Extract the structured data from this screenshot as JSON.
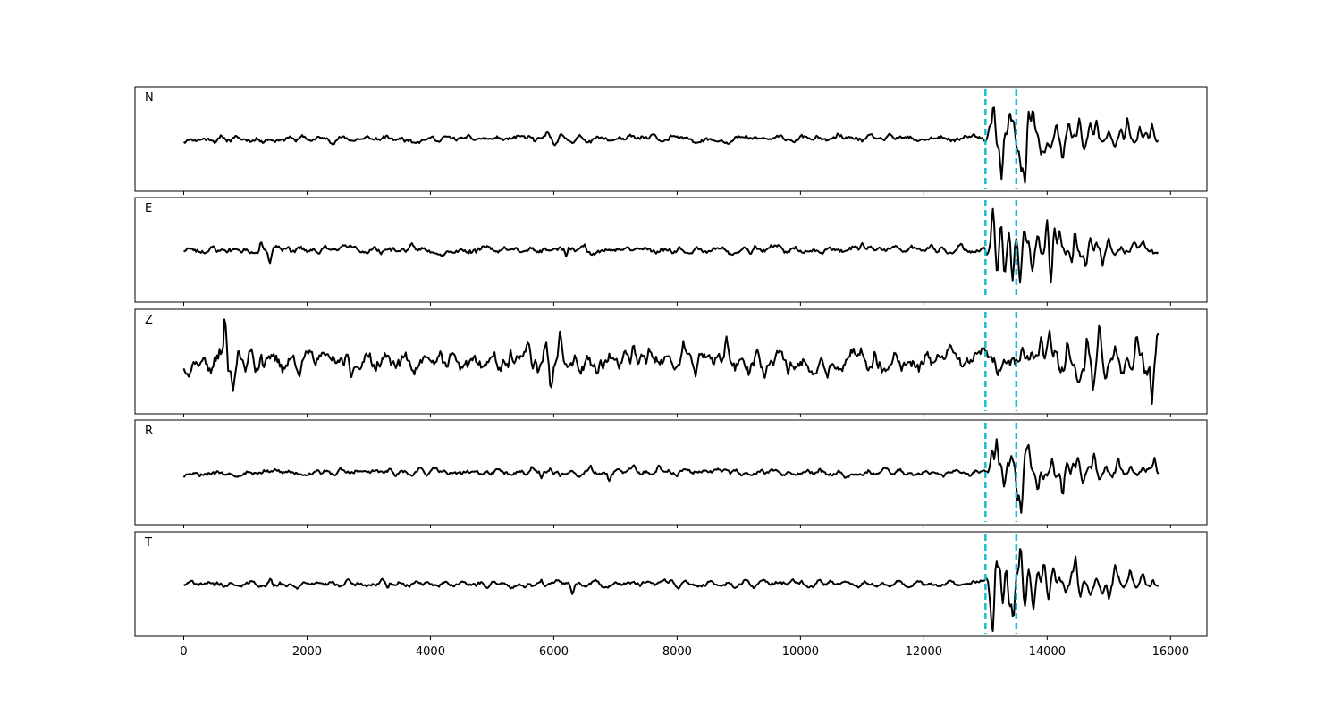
{
  "chart_data": {
    "type": "line",
    "x_range": [
      -790,
      16590
    ],
    "x_ticks": [
      0,
      2000,
      4000,
      6000,
      8000,
      10000,
      12000,
      14000,
      16000
    ],
    "x_tick_labels": [
      "0",
      "2000",
      "4000",
      "6000",
      "8000",
      "10000",
      "12000",
      "14000",
      "16000"
    ],
    "x_end": 15800,
    "y_range": [
      -1,
      1
    ],
    "markers": [
      13000,
      13500
    ],
    "marker_color": "#17becf",
    "trace_color": "#000000",
    "grid": false,
    "panels": [
      {
        "label": "N",
        "baseline": 0,
        "noise_amp": 0.07,
        "noise_seed": 11,
        "events": [
          [
            700,
            0.01
          ],
          [
            5600,
            0.05
          ],
          [
            5700,
            -0.06
          ],
          [
            5900,
            0.07
          ],
          [
            6000,
            -0.08
          ],
          [
            6100,
            0.06
          ],
          [
            7600,
            0.06
          ],
          [
            7900,
            0.07
          ],
          [
            8100,
            -0.07
          ],
          [
            9800,
            0.05
          ],
          [
            10600,
            0.06
          ],
          [
            12900,
            0.05
          ],
          [
            13000,
            -0.1
          ],
          [
            13070,
            0.3
          ],
          [
            13130,
            0.78
          ],
          [
            13200,
            -0.2
          ],
          [
            13260,
            -0.86
          ],
          [
            13320,
            0.2
          ],
          [
            13390,
            0.55
          ],
          [
            13450,
            0.4
          ],
          [
            13520,
            -0.3
          ],
          [
            13580,
            -0.7
          ],
          [
            13640,
            -0.95
          ],
          [
            13700,
            0.55
          ],
          [
            13770,
            0.6
          ],
          [
            13830,
            0.1
          ],
          [
            13900,
            -0.35
          ],
          [
            13960,
            -0.3
          ],
          [
            14050,
            -0.2
          ],
          [
            14150,
            0.35
          ],
          [
            14250,
            -0.45
          ],
          [
            14350,
            0.3
          ],
          [
            14450,
            0.1
          ],
          [
            14520,
            0.45
          ],
          [
            14600,
            -0.25
          ],
          [
            14700,
            0.3
          ],
          [
            14800,
            0.4
          ],
          [
            14900,
            -0.1
          ],
          [
            15000,
            0.2
          ],
          [
            15100,
            -0.15
          ],
          [
            15200,
            0.2
          ],
          [
            15300,
            0.45
          ],
          [
            15400,
            -0.1
          ],
          [
            15500,
            0.3
          ],
          [
            15600,
            0.1
          ],
          [
            15700,
            0.35
          ],
          [
            15780,
            -0.1
          ]
        ]
      },
      {
        "label": "E",
        "baseline": 0,
        "noise_amp": 0.08,
        "noise_seed": 23,
        "events": [
          [
            1250,
            0.2
          ],
          [
            1400,
            -0.25
          ],
          [
            2700,
            0.08
          ],
          [
            5200,
            0.08
          ],
          [
            6200,
            -0.15
          ],
          [
            6500,
            0.12
          ],
          [
            9200,
            -0.12
          ],
          [
            10100,
            0.1
          ],
          [
            11000,
            0.15
          ],
          [
            12600,
            0.08
          ],
          [
            13020,
            -0.15
          ],
          [
            13120,
            0.82
          ],
          [
            13190,
            -0.5
          ],
          [
            13250,
            0.6
          ],
          [
            13310,
            -0.5
          ],
          [
            13380,
            0.45
          ],
          [
            13440,
            -0.75
          ],
          [
            13500,
            0.2
          ],
          [
            13560,
            -0.7
          ],
          [
            13630,
            0.4
          ],
          [
            13700,
            0.2
          ],
          [
            13760,
            -0.4
          ],
          [
            13850,
            0.35
          ],
          [
            13930,
            -0.1
          ],
          [
            14000,
            0.6
          ],
          [
            14060,
            -0.8
          ],
          [
            14120,
            0.4
          ],
          [
            14200,
            0.45
          ],
          [
            14300,
            -0.1
          ],
          [
            14400,
            -0.25
          ],
          [
            14450,
            0.45
          ],
          [
            14550,
            -0.2
          ],
          [
            14620,
            -0.35
          ],
          [
            14700,
            0.3
          ],
          [
            14800,
            0.15
          ],
          [
            14900,
            -0.3
          ],
          [
            15000,
            0.25
          ],
          [
            15100,
            -0.1
          ],
          [
            15200,
            0.1
          ],
          [
            15400,
            0.15
          ],
          [
            15550,
            0.1
          ],
          [
            15700,
            0.05
          ]
        ]
      },
      {
        "label": "Z",
        "baseline": 0,
        "noise_amp": 0.22,
        "noise_seed": 37,
        "events": [
          [
            450,
            -0.15
          ],
          [
            600,
            0.2
          ],
          [
            670,
            0.88
          ],
          [
            730,
            -0.3
          ],
          [
            800,
            -0.5
          ],
          [
            880,
            0.3
          ],
          [
            1000,
            -0.3
          ],
          [
            1100,
            0.35
          ],
          [
            1250,
            0.28
          ],
          [
            1400,
            -0.2
          ],
          [
            2550,
            0.35
          ],
          [
            2700,
            -0.25
          ],
          [
            4200,
            -0.22
          ],
          [
            5300,
            0.38
          ],
          [
            5600,
            0.4
          ],
          [
            5750,
            -0.4
          ],
          [
            5870,
            0.45
          ],
          [
            5960,
            -0.55
          ],
          [
            6100,
            0.4
          ],
          [
            6400,
            -0.25
          ],
          [
            6700,
            -0.35
          ],
          [
            7300,
            0.35
          ],
          [
            7500,
            -0.25
          ],
          [
            8100,
            0.32
          ],
          [
            8300,
            -0.22
          ],
          [
            8800,
            0.3
          ],
          [
            9300,
            0.28
          ],
          [
            9900,
            -0.25
          ],
          [
            11200,
            0.25
          ],
          [
            12000,
            -0.15
          ],
          [
            13200,
            -0.1
          ],
          [
            13600,
            0.25
          ],
          [
            13900,
            0.3
          ],
          [
            14030,
            0.55
          ],
          [
            14200,
            -0.3
          ],
          [
            14330,
            0.4
          ],
          [
            14500,
            -0.35
          ],
          [
            14650,
            0.55
          ],
          [
            14750,
            -0.55
          ],
          [
            14850,
            0.75
          ],
          [
            14950,
            -0.3
          ],
          [
            15100,
            0.35
          ],
          [
            15200,
            -0.2
          ],
          [
            15300,
            0.25
          ],
          [
            15450,
            0.5
          ],
          [
            15600,
            -0.3
          ],
          [
            15700,
            -0.78
          ],
          [
            15790,
            0.55
          ]
        ]
      },
      {
        "label": "R",
        "baseline": 0,
        "noise_amp": 0.07,
        "noise_seed": 53,
        "events": [
          [
            5650,
            0.08
          ],
          [
            5800,
            -0.1
          ],
          [
            5950,
            0.12
          ],
          [
            6100,
            -0.12
          ],
          [
            6600,
            0.1
          ],
          [
            6900,
            -0.12
          ],
          [
            7300,
            0.1
          ],
          [
            7700,
            0.1
          ],
          [
            8000,
            -0.1
          ],
          [
            8800,
            0.06
          ],
          [
            10300,
            0.06
          ],
          [
            13020,
            -0.05
          ],
          [
            13110,
            0.5
          ],
          [
            13180,
            0.78
          ],
          [
            13250,
            0.2
          ],
          [
            13300,
            -0.3
          ],
          [
            13360,
            0.2
          ],
          [
            13420,
            0.35
          ],
          [
            13470,
            0.2
          ],
          [
            13520,
            -0.55
          ],
          [
            13580,
            -0.82
          ],
          [
            13650,
            0.45
          ],
          [
            13700,
            0.55
          ],
          [
            13770,
            0.1
          ],
          [
            13850,
            -0.35
          ],
          [
            13940,
            -0.2
          ],
          [
            14000,
            -0.1
          ],
          [
            14080,
            0.3
          ],
          [
            14150,
            -0.1
          ],
          [
            14250,
            -0.55
          ],
          [
            14330,
            0.25
          ],
          [
            14420,
            0.2
          ],
          [
            14500,
            0.3
          ],
          [
            14580,
            -0.25
          ],
          [
            14680,
            0.15
          ],
          [
            14760,
            0.4
          ],
          [
            14850,
            -0.15
          ],
          [
            14950,
            0.15
          ],
          [
            15050,
            -0.1
          ],
          [
            15150,
            0.3
          ],
          [
            15250,
            -0.05
          ],
          [
            15350,
            0.1
          ],
          [
            15450,
            -0.05
          ],
          [
            15550,
            0.15
          ],
          [
            15650,
            0.05
          ],
          [
            15740,
            0.3
          ],
          [
            15800,
            0.0
          ]
        ]
      },
      {
        "label": "T",
        "baseline": 0,
        "noise_amp": 0.07,
        "noise_seed": 71,
        "events": [
          [
            1400,
            0.12
          ],
          [
            3300,
            -0.1
          ],
          [
            5800,
            0.1
          ],
          [
            6300,
            -0.18
          ],
          [
            7800,
            0.08
          ],
          [
            9000,
            0.06
          ],
          [
            10500,
            0.06
          ],
          [
            12400,
            0.08
          ],
          [
            13030,
            0.1
          ],
          [
            13080,
            -0.3
          ],
          [
            13120,
            -0.9
          ],
          [
            13170,
            0.55
          ],
          [
            13230,
            0.35
          ],
          [
            13280,
            -0.55
          ],
          [
            13330,
            0.3
          ],
          [
            13390,
            -0.5
          ],
          [
            13450,
            -0.7
          ],
          [
            13510,
            0.2
          ],
          [
            13570,
            0.75
          ],
          [
            13640,
            -0.5
          ],
          [
            13700,
            0.35
          ],
          [
            13780,
            -0.55
          ],
          [
            13860,
            0.2
          ],
          [
            13950,
            0.5
          ],
          [
            14020,
            -0.3
          ],
          [
            14100,
            0.35
          ],
          [
            14200,
            0.1
          ],
          [
            14300,
            -0.2
          ],
          [
            14400,
            0.3
          ],
          [
            14460,
            0.6
          ],
          [
            14540,
            -0.25
          ],
          [
            14600,
            0.05
          ],
          [
            14700,
            -0.2
          ],
          [
            14800,
            0.2
          ],
          [
            14900,
            -0.15
          ],
          [
            15000,
            -0.35
          ],
          [
            15100,
            0.45
          ],
          [
            15150,
            0.2
          ],
          [
            15250,
            -0.1
          ],
          [
            15350,
            0.25
          ],
          [
            15450,
            -0.1
          ],
          [
            15550,
            0.2
          ],
          [
            15650,
            -0.05
          ],
          [
            15720,
            0.1
          ],
          [
            15800,
            0.0
          ]
        ]
      }
    ]
  }
}
